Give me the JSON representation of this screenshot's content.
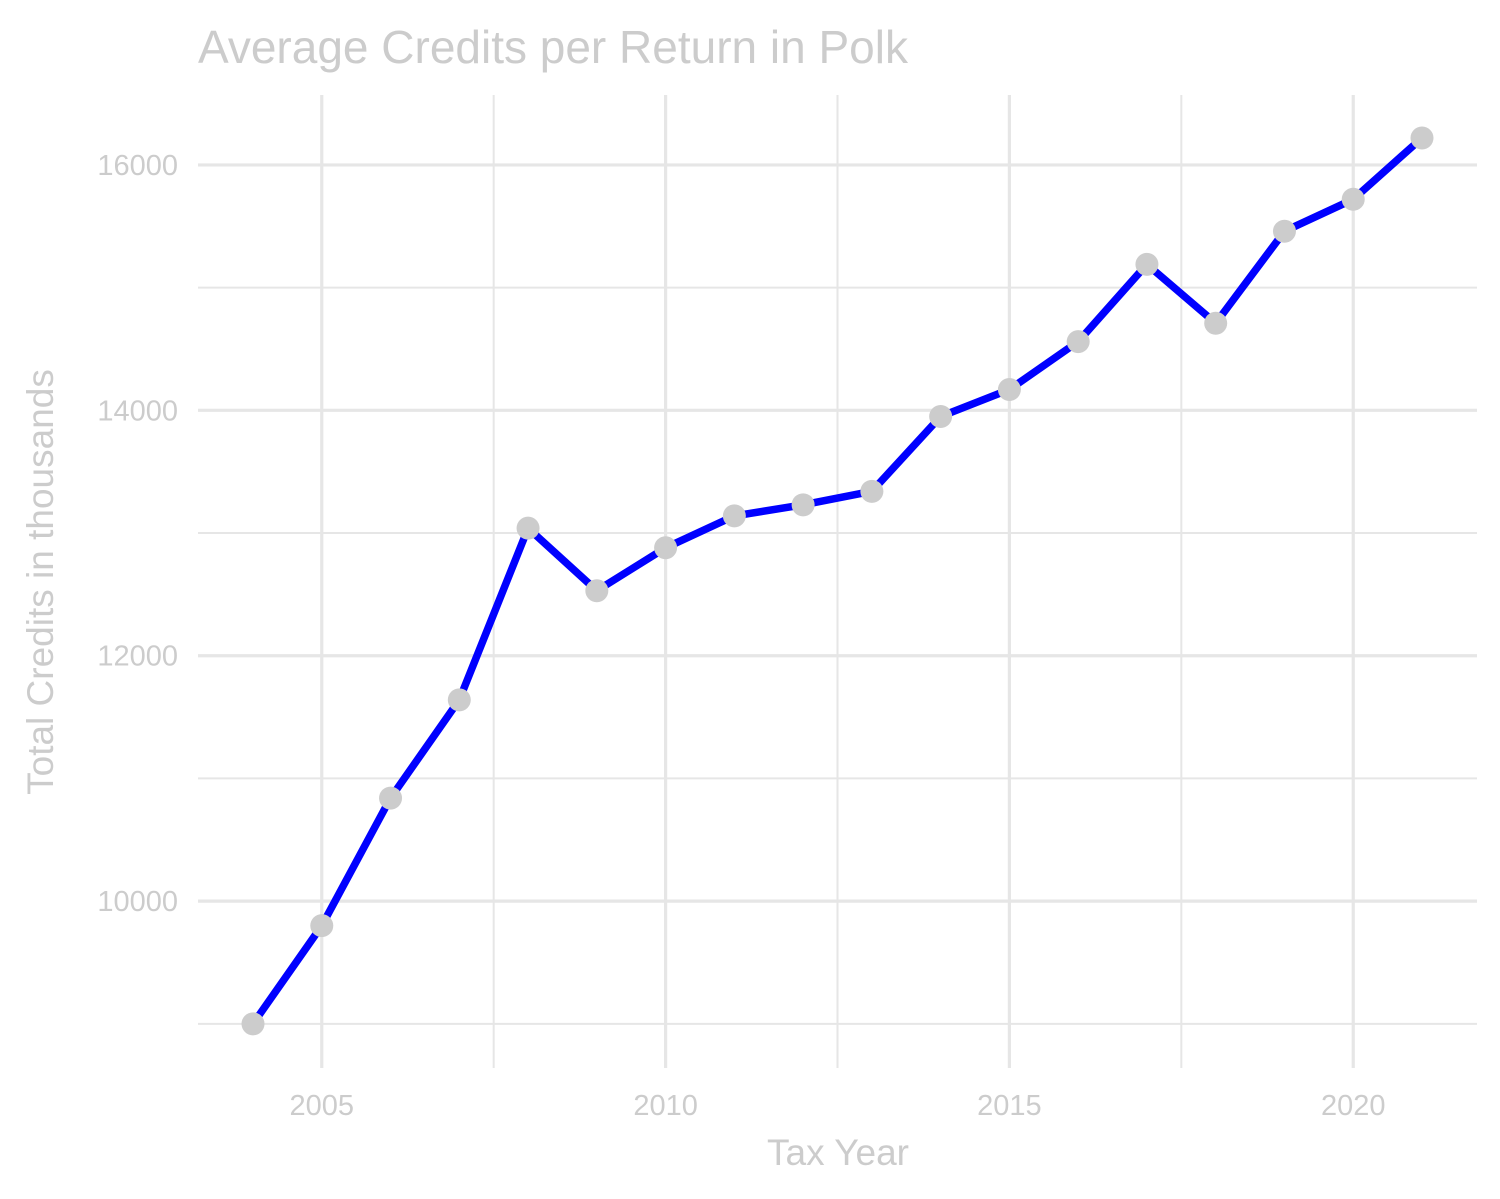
{
  "chart_data": {
    "type": "line",
    "title": "Average Credits per Return in Polk",
    "xlabel": "Tax Year",
    "ylabel": "Total Credits in thousands",
    "x": [
      2004,
      2005,
      2006,
      2007,
      2008,
      2009,
      2010,
      2011,
      2012,
      2013,
      2014,
      2015,
      2016,
      2017,
      2018,
      2019,
      2020,
      2021
    ],
    "series": [
      {
        "values": [
          9000,
          9800,
          10840,
          11640,
          13040,
          12530,
          12880,
          13140,
          13230,
          13340,
          13950,
          14170,
          14560,
          15190,
          14710,
          15460,
          15720,
          16220
        ]
      }
    ],
    "xlim": [
      2003.2,
      2021.8
    ],
    "ylim": [
      8640,
      16570
    ],
    "x_ticks": [
      "2005",
      "2010",
      "2015",
      "2020"
    ],
    "x_tick_values": [
      2005,
      2010,
      2015,
      2020
    ],
    "x_minor_values": [
      2007.5,
      2012.5,
      2017.5
    ],
    "y_ticks": [
      "10000",
      "12000",
      "14000",
      "16000"
    ],
    "y_tick_values": [
      10000,
      12000,
      14000,
      16000
    ],
    "y_minor_values": [
      9000,
      11000,
      13000,
      15000
    ],
    "grid": true,
    "legend": "none",
    "colors": {
      "line": "#0000ff",
      "points": "#cccccc",
      "text": "#cccccc",
      "grid": "#e6e6e6"
    }
  }
}
